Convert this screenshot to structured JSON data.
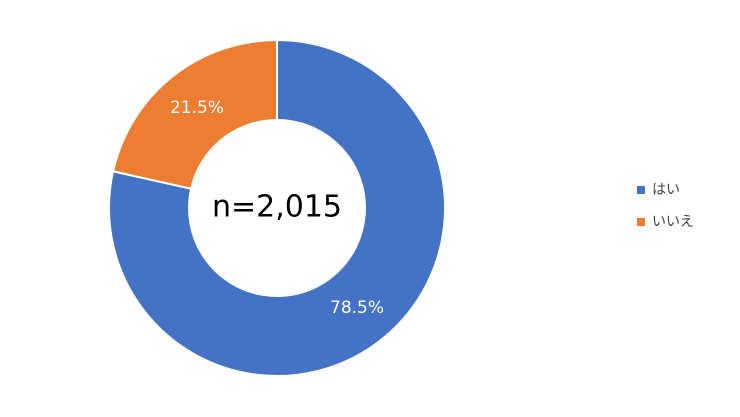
{
  "chart_data": {
    "type": "pie",
    "donut": true,
    "categories": [
      "はい",
      "いいえ"
    ],
    "values": [
      78.5,
      21.5
    ],
    "value_labels": [
      "78.5%",
      "21.5%"
    ],
    "colors": [
      "#4472c4",
      "#ed7d31"
    ],
    "center_label": "n=2,015",
    "legend": "right"
  }
}
